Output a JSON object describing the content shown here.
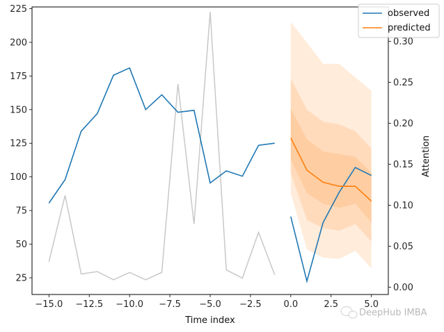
{
  "chart_data": {
    "type": "line",
    "xlabel": "Time index",
    "ylabel_left": "",
    "ylabel_right": "Attention",
    "xlim": [
      -16.05,
      6.05
    ],
    "ylim_left": [
      12.6,
      226.3
    ],
    "ylim_right": [
      -0.009,
      0.342
    ],
    "x_ticks": [
      -15.0,
      -12.5,
      -10.0,
      -7.5,
      -5.0,
      -2.5,
      0.0,
      2.5,
      5.0
    ],
    "x_tick_labels": [
      "−15.0",
      "−12.5",
      "−10.0",
      "−7.5",
      "−5.0",
      "−2.5",
      "0.0",
      "2.5",
      "5.0"
    ],
    "y_left_ticks": [
      25,
      50,
      75,
      100,
      125,
      150,
      175,
      200,
      225
    ],
    "y_left_tick_labels": [
      "25",
      "50",
      "75",
      "100",
      "125",
      "150",
      "175",
      "200",
      "225"
    ],
    "y_right_ticks": [
      0.0,
      0.05,
      0.1,
      0.15,
      0.2,
      0.25,
      0.3
    ],
    "y_right_tick_labels": [
      "0.00",
      "0.05",
      "0.10",
      "0.15",
      "0.20",
      "0.25",
      "0.30"
    ],
    "legend": {
      "placement": "top-right",
      "entries": [
        "observed",
        "predicted"
      ]
    },
    "colors": {
      "observed": "#1f77b4",
      "predicted": "#ff7f0e",
      "attention": "#c8c8c8",
      "band": "#ff7f0e"
    },
    "series": [
      {
        "name": "observed",
        "axis": "left",
        "x": [
          -15,
          -14,
          -13,
          -12,
          -11,
          -10,
          -9,
          -8,
          -7,
          -6,
          -5,
          -4,
          -3,
          -2,
          -1,
          0,
          1,
          2,
          3,
          4,
          5
        ],
        "values": [
          80.5,
          98,
          134,
          147,
          175.5,
          181,
          150,
          161,
          148,
          149.5,
          95.5,
          104.5,
          100.5,
          123.5,
          125,
          70.5,
          22.5,
          66,
          88.5,
          107,
          101
        ]
      },
      {
        "name": "predicted",
        "axis": "left",
        "x": [
          0,
          1,
          2,
          3,
          4,
          5
        ],
        "values": [
          129,
          105,
          96,
          93,
          93,
          82
        ]
      },
      {
        "name": "attention",
        "axis": "right",
        "x": [
          -15,
          -14,
          -13,
          -12,
          -11,
          -10,
          -9,
          -8,
          -7,
          -6,
          -5,
          -4,
          -3,
          -2,
          -1
        ],
        "values": [
          0.031,
          0.112,
          0.016,
          0.019,
          0.009,
          0.018,
          0.009,
          0.018,
          0.248,
          0.077,
          0.336,
          0.021,
          0.011,
          0.067,
          0.015
        ]
      }
    ],
    "quantile_bands": {
      "x": [
        0,
        1,
        2,
        3,
        4,
        5
      ],
      "bands": [
        {
          "opacity": 0.15,
          "lower": [
            88,
            46,
            40,
            39,
            45,
            32
          ],
          "upper": [
            215,
            200,
            184,
            184,
            174,
            164
          ]
        },
        {
          "opacity": 0.15,
          "lower": [
            103,
            68,
            62,
            60,
            65,
            52
          ],
          "upper": [
            173,
            150,
            141,
            139,
            134,
            121
          ]
        },
        {
          "opacity": 0.15,
          "lower": [
            113,
            88,
            80,
            77,
            80,
            66
          ],
          "upper": [
            151,
            128,
            119,
            117,
            115,
            103
          ]
        }
      ]
    }
  },
  "legend": {
    "observed_label": "observed",
    "predicted_label": "predicted"
  },
  "watermark": {
    "text": "DeepHub IMBA"
  }
}
